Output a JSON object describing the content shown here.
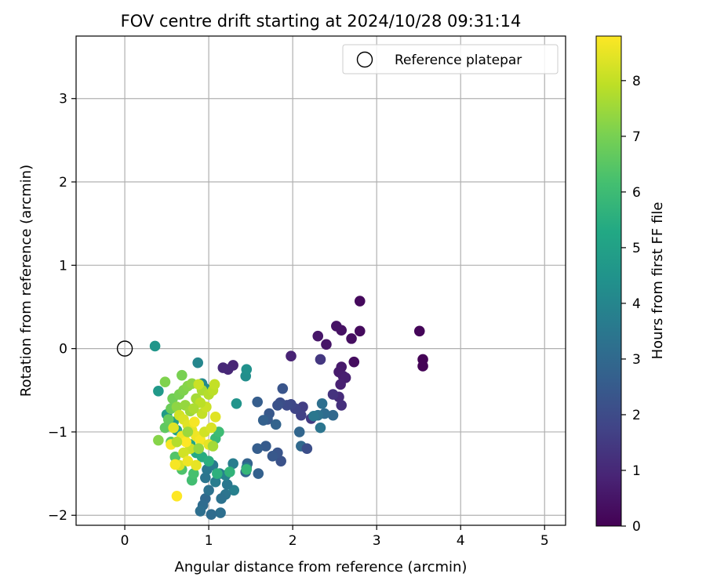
{
  "chart_data": {
    "type": "scatter",
    "title": "FOV centre drift starting at 2024/10/28 09:31:14",
    "xlabel": "Angular distance from reference (arcmin)",
    "ylabel": "Rotation from reference (arcmin)",
    "xlim": [
      -0.58,
      5.25
    ],
    "ylim": [
      -2.12,
      3.75
    ],
    "xticks": [
      0,
      1,
      2,
      3,
      4,
      5
    ],
    "yticks": [
      -2,
      -1,
      0,
      1,
      2,
      3
    ],
    "grid": true,
    "legend": {
      "position": "top-right",
      "entries": [
        {
          "label": "Reference platepar",
          "marker": "open-circle"
        }
      ]
    },
    "reference_point": {
      "x": 0,
      "y": 0
    },
    "colorbar": {
      "label": "Hours from first FF file",
      "colormap": "viridis",
      "range": [
        0,
        8.8
      ],
      "ticks": [
        0,
        1,
        2,
        3,
        4,
        5,
        6,
        7,
        8
      ]
    },
    "points": [
      [
        3.55,
        -0.13,
        0.05
      ],
      [
        3.55,
        -0.21,
        0.05
      ],
      [
        3.51,
        0.21,
        0.1
      ],
      [
        2.8,
        0.57,
        0.2
      ],
      [
        2.8,
        0.21,
        0.25
      ],
      [
        2.73,
        -0.16,
        0.3
      ],
      [
        2.7,
        0.12,
        0.35
      ],
      [
        2.58,
        0.22,
        0.4
      ],
      [
        2.52,
        0.27,
        0.45
      ],
      [
        2.4,
        0.05,
        0.5
      ],
      [
        2.3,
        0.15,
        0.55
      ],
      [
        2.58,
        -0.22,
        0.6
      ],
      [
        2.55,
        -0.28,
        0.65
      ],
      [
        2.6,
        -0.33,
        0.7
      ],
      [
        2.63,
        -0.35,
        0.75
      ],
      [
        2.57,
        -0.43,
        0.8
      ],
      [
        1.98,
        -0.09,
        0.85
      ],
      [
        1.29,
        -0.2,
        0.9
      ],
      [
        1.23,
        -0.25,
        0.95
      ],
      [
        1.17,
        -0.23,
        1.0
      ],
      [
        2.55,
        -0.58,
        1.1
      ],
      [
        2.58,
        -0.68,
        1.2
      ],
      [
        2.48,
        -0.55,
        1.3
      ],
      [
        2.33,
        -0.13,
        1.4
      ],
      [
        2.22,
        -0.84,
        1.5
      ],
      [
        2.12,
        -0.7,
        1.6
      ],
      [
        2.1,
        -0.8,
        1.7
      ],
      [
        2.03,
        -0.72,
        1.8
      ],
      [
        1.98,
        -0.67,
        1.9
      ],
      [
        1.93,
        -0.68,
        2.0
      ],
      [
        1.85,
        -0.65,
        2.1
      ],
      [
        1.82,
        -0.68,
        2.2
      ],
      [
        1.88,
        -0.48,
        2.3
      ],
      [
        1.72,
        -0.78,
        2.4
      ],
      [
        1.7,
        -0.85,
        2.5
      ],
      [
        1.58,
        -0.64,
        2.6
      ],
      [
        1.65,
        -0.86,
        2.7
      ],
      [
        1.8,
        -0.91,
        2.8
      ],
      [
        2.08,
        -1.0,
        2.9
      ],
      [
        2.1,
        -1.17,
        3.0
      ],
      [
        2.17,
        -1.2,
        2.1
      ],
      [
        1.86,
        -1.35,
        2.2
      ],
      [
        1.82,
        -1.25,
        2.3
      ],
      [
        1.76,
        -1.29,
        2.4
      ],
      [
        1.68,
        -1.17,
        2.5
      ],
      [
        1.58,
        -1.2,
        2.6
      ],
      [
        1.59,
        -1.5,
        2.7
      ],
      [
        1.46,
        -1.38,
        2.8
      ],
      [
        1.44,
        -1.48,
        2.9
      ],
      [
        2.48,
        -0.8,
        3.0
      ],
      [
        2.38,
        -0.78,
        3.1
      ],
      [
        2.35,
        -0.66,
        3.2
      ],
      [
        2.3,
        -0.8,
        3.3
      ],
      [
        2.33,
        -0.95,
        3.4
      ],
      [
        2.25,
        -0.81,
        3.5
      ],
      [
        1.45,
        -1.43,
        3.6
      ],
      [
        1.29,
        -1.38,
        3.7
      ],
      [
        1.3,
        -1.7,
        3.8
      ],
      [
        1.22,
        -1.63,
        3.5
      ],
      [
        1.2,
        -1.75,
        3.4
      ],
      [
        1.15,
        -1.8,
        3.3
      ],
      [
        1.14,
        -1.97,
        3.2
      ],
      [
        1.03,
        -1.99,
        3.1
      ],
      [
        0.96,
        -1.8,
        3.0
      ],
      [
        0.93,
        -1.88,
        3.1
      ],
      [
        0.9,
        -1.95,
        3.2
      ],
      [
        1.0,
        -1.7,
        3.3
      ],
      [
        0.96,
        -1.55,
        3.4
      ],
      [
        0.98,
        -1.45,
        3.5
      ],
      [
        1.05,
        -1.4,
        3.6
      ],
      [
        1.08,
        -1.6,
        3.7
      ],
      [
        1.13,
        -1.5,
        3.8
      ],
      [
        1.2,
        -1.52,
        3.9
      ],
      [
        0.87,
        -0.17,
        4.0
      ],
      [
        0.92,
        -0.42,
        4.1
      ],
      [
        0.96,
        -0.48,
        4.2
      ],
      [
        1.44,
        -0.33,
        4.3
      ],
      [
        1.45,
        -0.25,
        4.4
      ],
      [
        1.33,
        -0.66,
        4.5
      ],
      [
        0.36,
        0.03,
        4.6
      ],
      [
        0.4,
        -0.51,
        4.7
      ],
      [
        0.5,
        -0.79,
        4.8
      ],
      [
        0.58,
        -0.88,
        4.9
      ],
      [
        0.62,
        -0.98,
        5.0
      ],
      [
        0.7,
        -1.05,
        5.1
      ],
      [
        0.78,
        -1.15,
        5.2
      ],
      [
        0.85,
        -1.25,
        5.3
      ],
      [
        0.92,
        -1.3,
        5.4
      ],
      [
        1.0,
        -1.35,
        5.5
      ],
      [
        1.1,
        -1.5,
        5.6
      ],
      [
        1.25,
        -1.48,
        5.7
      ],
      [
        1.45,
        -1.45,
        5.8
      ],
      [
        1.08,
        -1.08,
        5.9
      ],
      [
        1.12,
        -1.0,
        6.0
      ],
      [
        0.8,
        -1.58,
        6.1
      ],
      [
        0.82,
        -1.5,
        6.2
      ],
      [
        0.68,
        -1.45,
        6.3
      ],
      [
        0.6,
        -1.3,
        6.4
      ],
      [
        0.55,
        -1.12,
        6.5
      ],
      [
        0.48,
        -0.95,
        6.6
      ],
      [
        0.52,
        -0.85,
        6.7
      ],
      [
        0.55,
        -0.72,
        6.8
      ],
      [
        0.57,
        -0.6,
        6.9
      ],
      [
        0.65,
        -0.55,
        7.0
      ],
      [
        0.7,
        -0.5,
        7.1
      ],
      [
        0.75,
        -0.45,
        7.2
      ],
      [
        0.8,
        -0.42,
        7.3
      ],
      [
        0.68,
        -0.32,
        7.0
      ],
      [
        0.48,
        -0.4,
        7.1
      ],
      [
        0.4,
        -1.1,
        7.2
      ],
      [
        0.62,
        -0.7,
        7.3
      ],
      [
        0.72,
        -0.68,
        7.4
      ],
      [
        0.78,
        -0.75,
        7.5
      ],
      [
        0.85,
        -0.6,
        7.6
      ],
      [
        0.92,
        -0.5,
        7.7
      ],
      [
        1.0,
        -0.55,
        7.8
      ],
      [
        1.05,
        -0.5,
        7.9
      ],
      [
        1.07,
        -0.43,
        8.0
      ],
      [
        0.88,
        -0.43,
        8.1
      ],
      [
        0.65,
        -0.8,
        8.2
      ],
      [
        0.7,
        -0.85,
        8.3
      ],
      [
        0.75,
        -0.92,
        8.4
      ],
      [
        0.8,
        -0.98,
        8.5
      ],
      [
        0.85,
        -1.05,
        8.6
      ],
      [
        0.9,
        -1.1,
        8.7
      ],
      [
        0.95,
        -1.0,
        8.2
      ],
      [
        1.03,
        -0.95,
        8.3
      ],
      [
        1.08,
        -0.82,
        8.4
      ],
      [
        1.0,
        -1.15,
        8.5
      ],
      [
        0.92,
        -0.78,
        8.0
      ],
      [
        0.78,
        -1.2,
        8.1
      ],
      [
        0.7,
        -1.25,
        8.2
      ],
      [
        0.65,
        -1.4,
        8.3
      ],
      [
        0.6,
        -1.39,
        8.7
      ],
      [
        0.62,
        -1.77,
        8.8
      ],
      [
        0.75,
        -1.35,
        8.6
      ],
      [
        0.85,
        -1.4,
        8.5
      ],
      [
        0.55,
        -1.15,
        8.7
      ],
      [
        0.58,
        -0.95,
        8.4
      ],
      [
        0.68,
        -1.05,
        8.6
      ],
      [
        0.73,
        -1.12,
        8.8
      ],
      [
        0.83,
        -0.88,
        8.7
      ],
      [
        0.97,
        -0.7,
        8.1
      ],
      [
        0.9,
        -0.65,
        7.9
      ],
      [
        0.82,
        -0.72,
        7.7
      ],
      [
        0.75,
        -1.0,
        7.5
      ],
      [
        0.88,
        -1.2,
        7.4
      ],
      [
        1.05,
        -1.17,
        7.6
      ],
      [
        0.62,
        -1.12,
        7.8
      ]
    ]
  }
}
